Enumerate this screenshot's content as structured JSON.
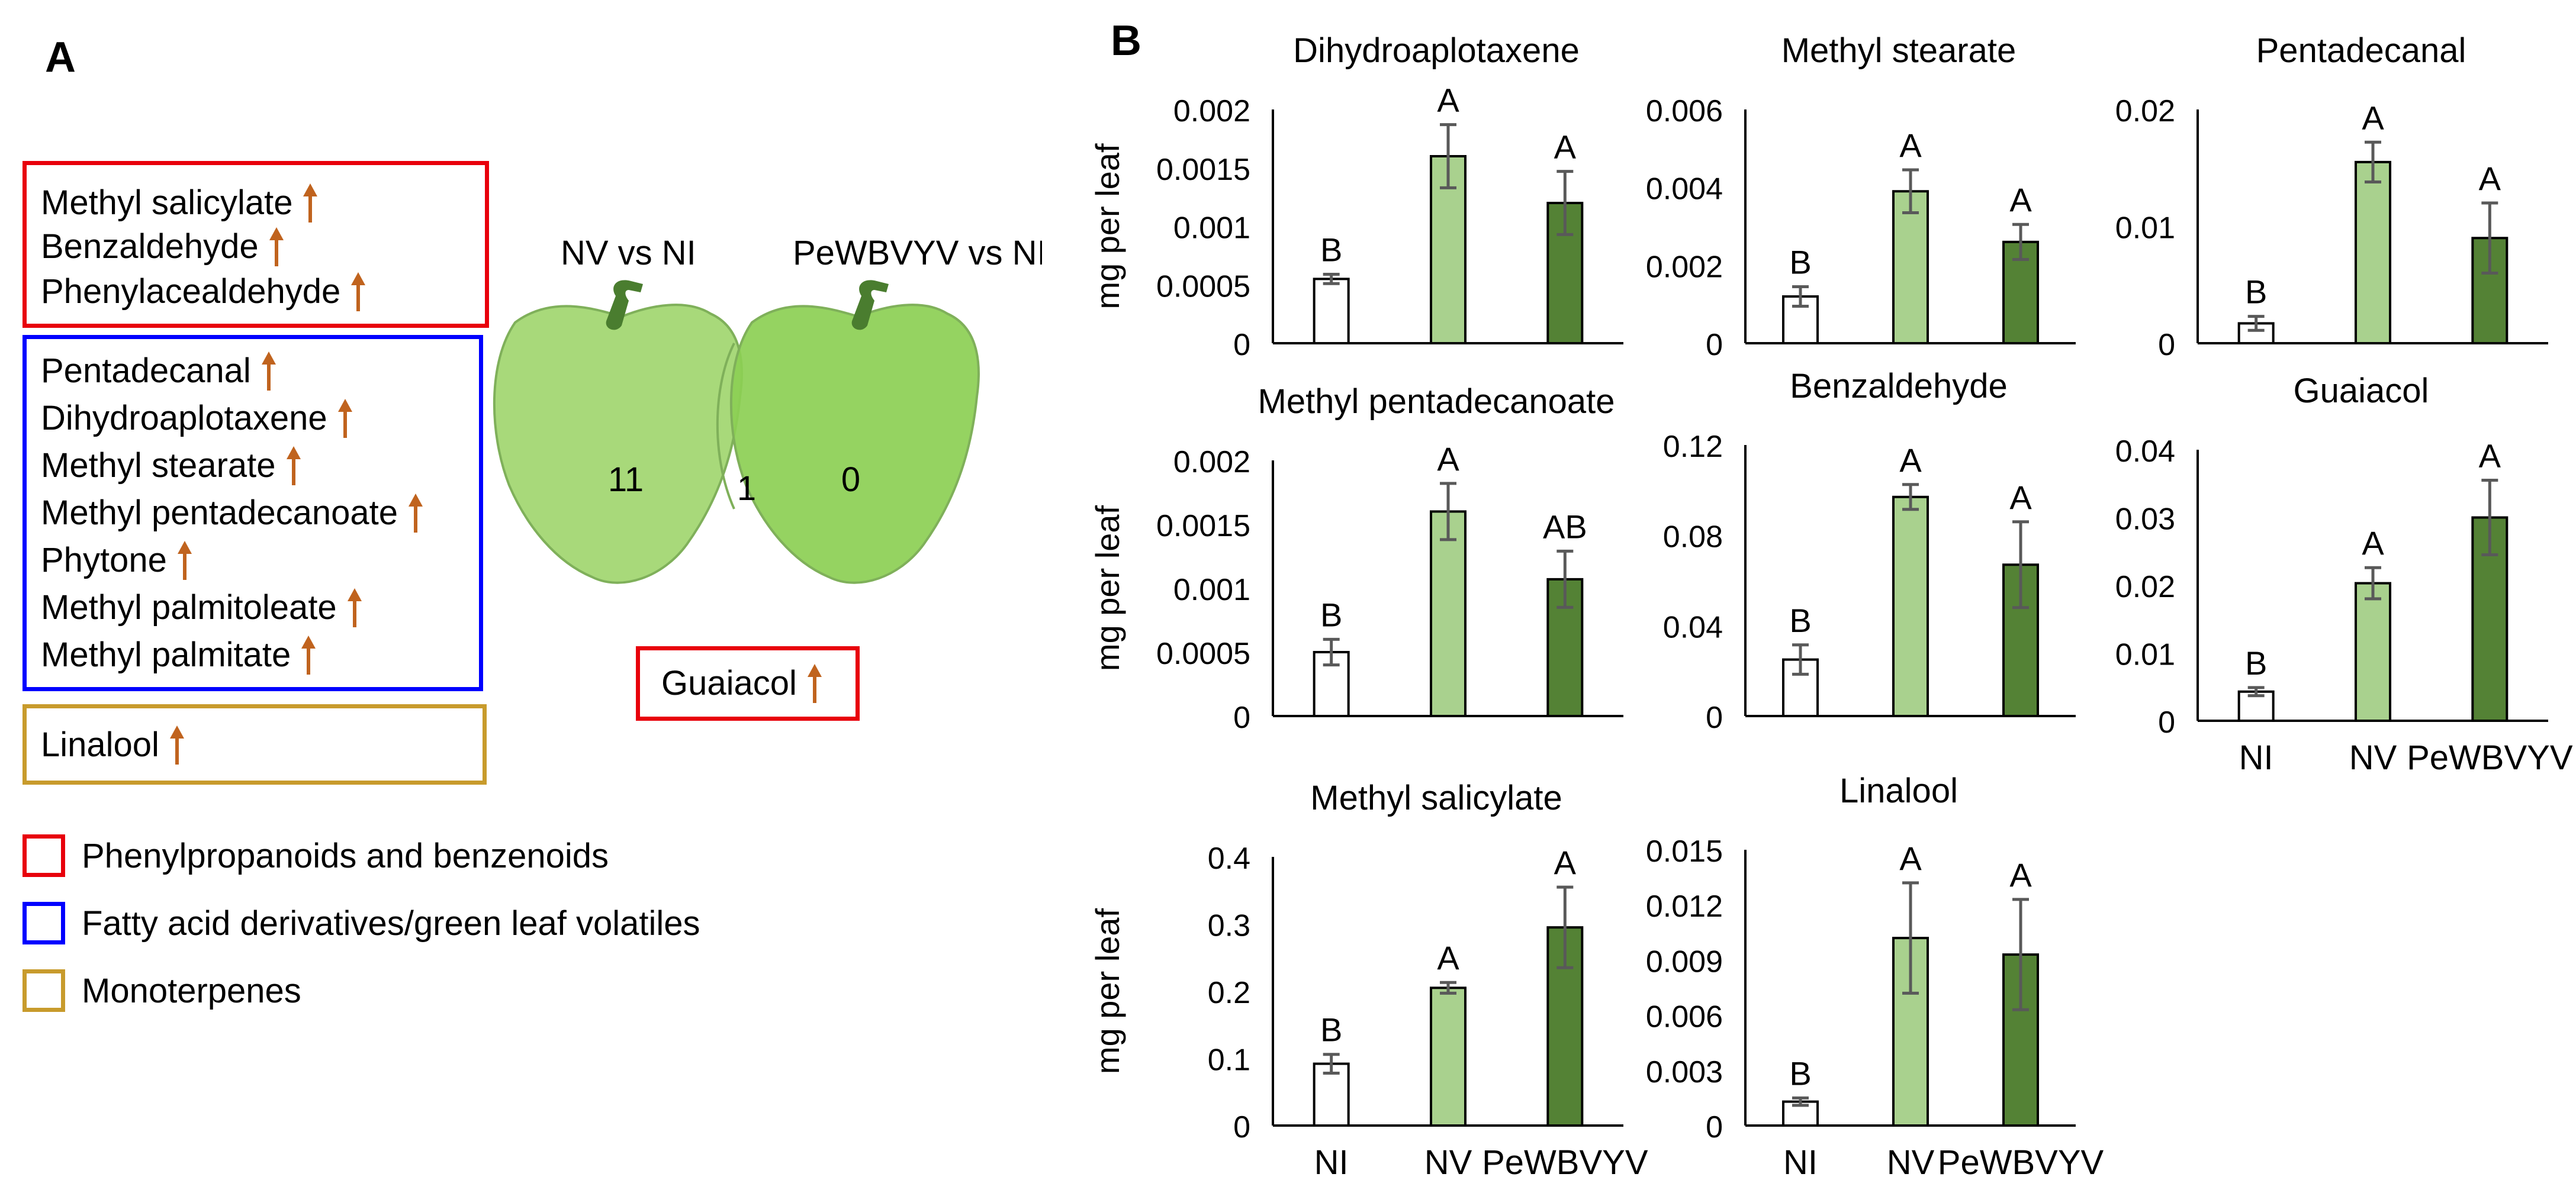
{
  "panel_a": {
    "label": "A",
    "groups": [
      {
        "category_color": "#e8000b",
        "compounds": [
          "Methyl salicylate",
          "Benzaldehyde",
          "Phenylacealdehyde"
        ]
      },
      {
        "category_color": "#0000ff",
        "compounds": [
          "Pentadecanal",
          "Dihydroaplotaxene",
          "Methyl stearate",
          "Methyl pentadecanoate",
          "Phytone",
          "Methyl palmitoleate",
          "Methyl palmitate"
        ]
      },
      {
        "category_color": "#c89b2c",
        "compounds": [
          "Linalool"
        ]
      }
    ],
    "venn": {
      "left_title": "NV vs NI",
      "right_title": "PeWBVYV vs NI",
      "left_count": "11",
      "overlap_count": "1",
      "right_count": "0",
      "overlap_compound": "Guaiacol"
    },
    "legend": [
      {
        "label": "Phenylpropanoids and benzenoids",
        "color": "#e8000b"
      },
      {
        "label": "Fatty acid derivatives/green leaf volatiles",
        "color": "#0000ff"
      },
      {
        "label": "Monoterpenes",
        "color": "#c89b2c"
      }
    ],
    "colors": {
      "arrow": "#c0631e",
      "pepper_left": "#a8d97a",
      "pepper_right": "#8ccf54",
      "stem": "#4a7d2f"
    }
  },
  "panel_b": {
    "label": "B",
    "ylabel": "mg per leaf"
  },
  "chart_data": [
    {
      "type": "bar",
      "title": "Dihydroaplotaxene",
      "categories": [
        "NI",
        "NV",
        "PeWBVYV"
      ],
      "values": [
        0.00055,
        0.0016,
        0.0012
      ],
      "errors": [
        4e-05,
        0.00027,
        0.00027
      ],
      "letters": [
        "B",
        "A",
        "A"
      ],
      "ylim": [
        0,
        0.002
      ],
      "yticks": [
        "0",
        "0.0005",
        "0.001",
        "0.0015",
        "0.002"
      ],
      "ylabel": "mg per leaf",
      "xlabel": "",
      "show_xlabels": false
    },
    {
      "type": "bar",
      "title": "Methyl stearate",
      "categories": [
        "NI",
        "NV",
        "PeWBVYV"
      ],
      "values": [
        0.0012,
        0.0039,
        0.0026
      ],
      "errors": [
        0.00025,
        0.00055,
        0.00045
      ],
      "letters": [
        "B",
        "A",
        "A"
      ],
      "ylim": [
        0,
        0.006
      ],
      "yticks": [
        "0",
        "0.002",
        "0.004",
        "0.006"
      ],
      "ylabel": "",
      "xlabel": "",
      "show_xlabels": false
    },
    {
      "type": "bar",
      "title": "Pentadecanal",
      "categories": [
        "NI",
        "NV",
        "PeWBVYV"
      ],
      "values": [
        0.0017,
        0.0155,
        0.009
      ],
      "errors": [
        0.0006,
        0.0017,
        0.003
      ],
      "letters": [
        "B",
        "A",
        "A"
      ],
      "ylim": [
        0,
        0.02
      ],
      "yticks": [
        "0",
        "0.01",
        "0.02"
      ],
      "ylabel": "",
      "xlabel": "",
      "show_xlabels": false
    },
    {
      "type": "bar",
      "title": "Methyl pentadecanoate",
      "categories": [
        "NI",
        "NV",
        "PeWBVYV"
      ],
      "values": [
        0.0005,
        0.0016,
        0.00107
      ],
      "errors": [
        0.0001,
        0.00022,
        0.00022
      ],
      "letters": [
        "B",
        "A",
        "AB"
      ],
      "ylim": [
        0,
        0.002
      ],
      "yticks": [
        "0",
        "0.0005",
        "0.001",
        "0.0015",
        "0.002"
      ],
      "ylabel": "mg per leaf",
      "xlabel": "",
      "show_xlabels": false
    },
    {
      "type": "bar",
      "title": "Benzaldehyde",
      "categories": [
        "NI",
        "NV",
        "PeWBVYV"
      ],
      "values": [
        0.025,
        0.097,
        0.067
      ],
      "errors": [
        0.0065,
        0.0055,
        0.019
      ],
      "letters": [
        "B",
        "A",
        "A"
      ],
      "ylim": [
        0,
        0.12
      ],
      "yticks": [
        "0",
        "0.04",
        "0.08",
        "0.12"
      ],
      "ylabel": "",
      "xlabel": "",
      "show_xlabels": false
    },
    {
      "type": "bar",
      "title": "Guaiacol",
      "categories": [
        "NI",
        "NV",
        "PeWBVYV"
      ],
      "values": [
        0.0043,
        0.0203,
        0.03
      ],
      "errors": [
        0.0006,
        0.0023,
        0.0055
      ],
      "letters": [
        "B",
        "A",
        "A"
      ],
      "ylim": [
        0,
        0.04
      ],
      "yticks": [
        "0",
        "0.01",
        "0.02",
        "0.03",
        "0.04"
      ],
      "ylabel": "",
      "xlabel": "",
      "show_xlabels": true
    },
    {
      "type": "bar",
      "title": "Methyl salicylate",
      "categories": [
        "NI",
        "NV",
        "PeWBVYV"
      ],
      "values": [
        0.092,
        0.205,
        0.295
      ],
      "errors": [
        0.014,
        0.008,
        0.06
      ],
      "letters": [
        "B",
        "A",
        "A"
      ],
      "ylim": [
        0,
        0.4
      ],
      "yticks": [
        "0",
        "0.1",
        "0.2",
        "0.3",
        "0.4"
      ],
      "ylabel": "mg per leaf",
      "xlabel": "",
      "show_xlabels": true
    },
    {
      "type": "bar",
      "title": "Linalool",
      "categories": [
        "NI",
        "NV",
        "PeWBVYV"
      ],
      "values": [
        0.0013,
        0.0102,
        0.0093
      ],
      "errors": [
        0.0002,
        0.003,
        0.003
      ],
      "letters": [
        "B",
        "A",
        "A"
      ],
      "ylim": [
        0,
        0.015
      ],
      "yticks": [
        "0",
        "0.003",
        "0.006",
        "0.009",
        "0.012",
        "0.015"
      ],
      "ylabel": "",
      "xlabel": "",
      "show_xlabels": true
    }
  ],
  "bar_colors": [
    "#ffffff",
    "#a9d18e",
    "#548235"
  ],
  "bar_stroke": "#000000",
  "error_color": "#595959",
  "axis_color": "#000000"
}
